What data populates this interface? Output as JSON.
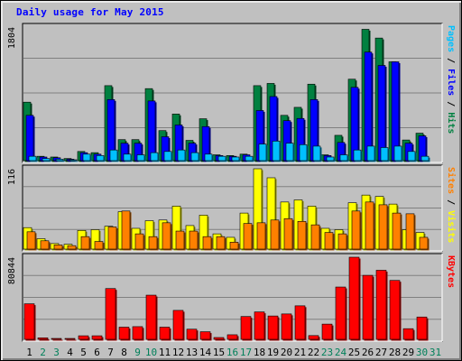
{
  "chart_data": {
    "type": "bar",
    "title": "Daily usage for May 2015",
    "categories": [
      "1",
      "2",
      "3",
      "4",
      "5",
      "6",
      "7",
      "8",
      "9",
      "10",
      "11",
      "12",
      "13",
      "14",
      "15",
      "16",
      "17",
      "18",
      "19",
      "20",
      "21",
      "22",
      "23",
      "24",
      "25",
      "26",
      "27",
      "28",
      "29",
      "30",
      "31"
    ],
    "weekend_days": [
      "2",
      "3",
      "9",
      "10",
      "16",
      "17",
      "23",
      "24",
      "30",
      "31"
    ],
    "panels": [
      {
        "label_parts": [
          {
            "text": "Pages",
            "color": "#00c0ff"
          },
          {
            "text": " / ",
            "color": "#000000"
          },
          {
            "text": "Files",
            "color": "#0000ff"
          },
          {
            "text": " / ",
            "color": "#000000"
          },
          {
            "text": "Hits",
            "color": "#008040"
          }
        ],
        "max_label": "1804",
        "ylim": [
          0,
          1804
        ],
        "series": [
          {
            "name": "Hits",
            "color": "#008040",
            "values": [
              790,
              59,
              49,
              29,
              124,
              108,
              1013,
              284,
              284,
              973,
              406,
              630,
              274,
              566,
              79,
              69,
              88,
              1013,
              1043,
              612,
              720,
              1033,
              79,
              342,
              1100,
              1774,
              1656,
              1335,
              279,
              371,
              0
            ]
          },
          {
            "name": "Files",
            "color": "#0000ff",
            "values": [
              612,
              49,
              39,
              20,
              108,
              88,
              825,
              236,
              236,
              806,
              323,
              482,
              236,
              460,
              69,
              59,
              79,
              677,
              866,
              540,
              570,
              825,
              69,
              246,
              990,
              1466,
              1286,
              1335,
              236,
              335,
              0
            ]
          },
          {
            "name": "Pages",
            "color": "#00c0ff",
            "values": [
              59,
              29,
              20,
              10,
              88,
              69,
              144,
              88,
              79,
              108,
              124,
              144,
              108,
              88,
              59,
              49,
              59,
              224,
              264,
              236,
              216,
              196,
              49,
              79,
              144,
              196,
              177,
              196,
              124,
              59,
              0
            ]
          }
        ]
      },
      {
        "label_parts": [
          {
            "text": "Sites",
            "color": "#ff8000"
          },
          {
            "text": " / ",
            "color": "#000000"
          },
          {
            "text": "Visits",
            "color": "#ffff00"
          }
        ],
        "max_label": "116",
        "ylim": [
          0,
          116
        ],
        "series": [
          {
            "name": "Visits",
            "color": "#ffff00",
            "values": [
              31,
              15,
              8,
              7,
              27,
              28,
              33,
              54,
              30,
              41,
              42,
              62,
              34,
              49,
              22,
              17,
              52,
              116,
              103,
              68,
              71,
              62,
              30,
              28,
              67,
              78,
              76,
              65,
              28,
              24,
              0
            ]
          },
          {
            "name": "Sites",
            "color": "#ff8000",
            "values": [
              25,
              12,
              6,
              5,
              18,
              11,
              32,
              55,
              22,
              18,
              38,
              26,
              26,
              18,
              18,
              10,
              37,
              38,
              42,
              44,
              40,
              35,
              24,
              22,
              55,
              68,
              64,
              52,
              51,
              17,
              0
            ]
          }
        ]
      },
      {
        "label_parts": [
          {
            "text": "KBytes",
            "color": "#ff0000"
          }
        ],
        "max_label": "80844",
        "ylim": [
          0,
          80844
        ],
        "series": [
          {
            "name": "KBytes",
            "color": "#ff0000",
            "values": [
              35000,
              1500,
              600,
              400,
              3500,
              3500,
              50000,
              12000,
              12500,
              43500,
              12000,
              28500,
              10000,
              7500,
              1800,
              4500,
              22500,
              27000,
              23000,
              25000,
              33000,
              3700,
              15000,
              51500,
              80844,
              63000,
              68000,
              58000,
              10500,
              22000,
              0
            ]
          }
        ]
      }
    ],
    "grid": true
  }
}
